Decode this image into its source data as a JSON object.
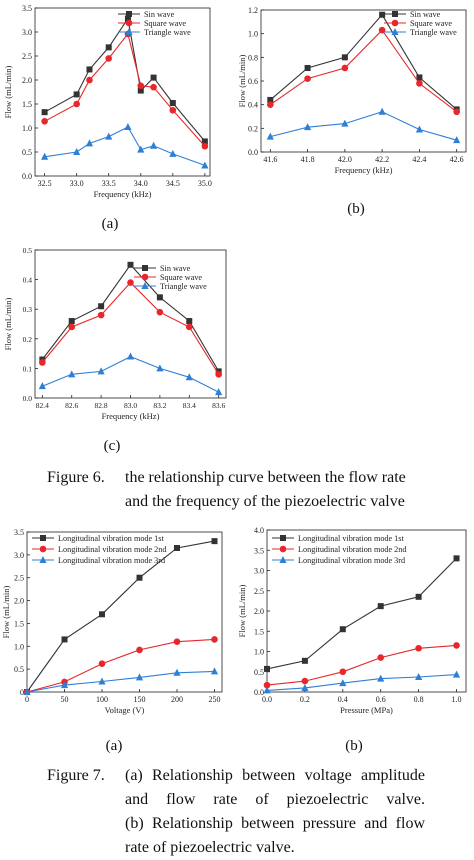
{
  "colors": {
    "sin": "#333333",
    "square": "#e8272a",
    "triangle": "#2f7fd6",
    "axis": "#222222"
  },
  "figure6": {
    "sublabels": [
      "(a)",
      "(b)",
      "(c)"
    ],
    "caption_number": "Figure 6.",
    "caption_lines": [
      "the relationship curve between the flow rate",
      "and the frequency of the piezoelectric valve"
    ]
  },
  "figure7": {
    "sublabels": [
      "(a)",
      "(b)"
    ],
    "caption_number": "Figure 7.",
    "caption_lines": [
      "(a) Relationship between voltage amplitude",
      "and flow rate of piezoelectric valve.",
      "(b) Relationship between pressure and flow",
      "rate of piezoelectric valve."
    ]
  },
  "chart_data": [
    {
      "id": "fig6a",
      "type": "line",
      "xlabel": "Frequency (kHz)",
      "ylabel": "Flow (mL/min)",
      "xlim": [
        32.35,
        35.08
      ],
      "ylim": [
        0,
        3.5
      ],
      "xticks": [
        32.5,
        33.0,
        33.5,
        34.0,
        34.5,
        35.0
      ],
      "xticklabels": [
        "32.5",
        "33.0",
        "33.5",
        "34.0",
        "34.5",
        "35.0"
      ],
      "yticks": [
        0,
        0.5,
        1.0,
        1.5,
        2.0,
        2.5,
        3.0,
        3.5
      ],
      "yticklabels": [
        "0.0",
        "0.5",
        "1.0",
        "1.5",
        "2.0",
        "2.5",
        "3.0",
        "3.5"
      ],
      "legend_position": "top-right",
      "series": [
        {
          "name": "Sin wave",
          "marker": "square",
          "color": "#333333",
          "x": [
            32.5,
            33.0,
            33.2,
            33.5,
            33.8,
            34.0,
            34.2,
            34.5,
            35.0
          ],
          "y": [
            1.33,
            1.7,
            2.22,
            2.68,
            3.28,
            1.78,
            2.05,
            1.52,
            0.72
          ]
        },
        {
          "name": "Square wave",
          "marker": "circle",
          "color": "#e8272a",
          "x": [
            32.5,
            33.0,
            33.2,
            33.5,
            33.8,
            34.0,
            34.2,
            34.5,
            35.0
          ],
          "y": [
            1.14,
            1.5,
            2.0,
            2.45,
            2.96,
            1.88,
            1.85,
            1.37,
            0.62
          ]
        },
        {
          "name": "Triangle wave",
          "marker": "triangle",
          "color": "#2f7fd6",
          "x": [
            32.5,
            33.0,
            33.2,
            33.5,
            33.8,
            34.0,
            34.2,
            34.5,
            35.0
          ],
          "y": [
            0.4,
            0.5,
            0.68,
            0.82,
            1.02,
            0.55,
            0.63,
            0.46,
            0.22
          ]
        }
      ]
    },
    {
      "id": "fig6b",
      "type": "line",
      "xlabel": "Frequency (kHz)",
      "ylabel": "Flow (mL/min)",
      "xlim": [
        41.55,
        42.65
      ],
      "ylim": [
        0,
        1.2
      ],
      "xticks": [
        41.6,
        41.8,
        42.0,
        42.2,
        42.4,
        42.6
      ],
      "xticklabels": [
        "41.6",
        "41.8",
        "42.0",
        "42.2",
        "42.4",
        "42.6"
      ],
      "yticks": [
        0,
        0.2,
        0.4,
        0.6,
        0.8,
        1.0,
        1.2
      ],
      "yticklabels": [
        "0.0",
        "0.2",
        "0.4",
        "0.6",
        "0.8",
        "1.0",
        "1.2"
      ],
      "legend_position": "top-right",
      "series": [
        {
          "name": "Sin wave",
          "marker": "square",
          "color": "#333333",
          "x": [
            41.6,
            41.8,
            42.0,
            42.2,
            42.4,
            42.6
          ],
          "y": [
            0.44,
            0.71,
            0.8,
            1.16,
            0.63,
            0.36
          ]
        },
        {
          "name": "Square wave",
          "marker": "circle",
          "color": "#e8272a",
          "x": [
            41.6,
            41.8,
            42.0,
            42.2,
            42.4,
            42.6
          ],
          "y": [
            0.4,
            0.62,
            0.71,
            1.03,
            0.58,
            0.34
          ]
        },
        {
          "name": "Triangle wave",
          "marker": "triangle",
          "color": "#2f7fd6",
          "x": [
            41.6,
            41.8,
            42.0,
            42.2,
            42.4,
            42.6
          ],
          "y": [
            0.13,
            0.21,
            0.24,
            0.34,
            0.19,
            0.1
          ]
        }
      ]
    },
    {
      "id": "fig6c",
      "type": "line",
      "xlabel": "Frequency (kHz)",
      "ylabel": "Flow (mL/min)",
      "xlim": [
        82.35,
        83.65
      ],
      "ylim": [
        0,
        0.5
      ],
      "xticks": [
        82.4,
        82.6,
        82.8,
        83.0,
        83.2,
        83.4,
        83.6
      ],
      "xticklabels": [
        "82.4",
        "82.6",
        "82.8",
        "83.0",
        "83.2",
        "83.4",
        "83.6"
      ],
      "yticks": [
        0,
        0.1,
        0.2,
        0.3,
        0.4,
        0.5
      ],
      "yticklabels": [
        "0.0",
        "0.1",
        "0.2",
        "0.3",
        "0.4",
        "0.5"
      ],
      "legend_position": "top-right",
      "series": [
        {
          "name": "Sin wave",
          "marker": "square",
          "color": "#333333",
          "x": [
            82.4,
            82.6,
            82.8,
            83.0,
            83.2,
            83.4,
            83.6
          ],
          "y": [
            0.13,
            0.26,
            0.31,
            0.45,
            0.34,
            0.26,
            0.09
          ]
        },
        {
          "name": "Square wave",
          "marker": "circle",
          "color": "#e8272a",
          "x": [
            82.4,
            82.6,
            82.8,
            83.0,
            83.2,
            83.4,
            83.6
          ],
          "y": [
            0.12,
            0.24,
            0.28,
            0.39,
            0.29,
            0.24,
            0.08
          ]
        },
        {
          "name": "Triangle wave",
          "marker": "triangle",
          "color": "#2f7fd6",
          "x": [
            82.4,
            82.6,
            82.8,
            83.0,
            83.2,
            83.4,
            83.6
          ],
          "y": [
            0.04,
            0.08,
            0.09,
            0.14,
            0.1,
            0.07,
            0.02
          ]
        }
      ]
    },
    {
      "id": "fig7a",
      "type": "line",
      "xlabel": "Voltage (V)",
      "ylabel": "Flow (mL/min)",
      "xlim": [
        0,
        260
      ],
      "ylim": [
        0,
        3.5
      ],
      "xticks": [
        0,
        50,
        100,
        150,
        200,
        250
      ],
      "xticklabels": [
        "0",
        "50",
        "100",
        "150",
        "200",
        "250"
      ],
      "yticks": [
        0,
        0.5,
        1.0,
        1.5,
        2.0,
        2.5,
        3.0,
        3.5
      ],
      "yticklabels": [
        "0",
        "0.5",
        "1.0",
        "1.5",
        "2.0",
        "2.5",
        "3.0",
        "3.5"
      ],
      "legend_position": "top-left",
      "series": [
        {
          "name": "Longitudinal vibration mode 1st",
          "marker": "square",
          "color": "#333333",
          "x": [
            0,
            50,
            100,
            150,
            200,
            250
          ],
          "y": [
            0,
            1.15,
            1.7,
            2.5,
            3.15,
            3.3
          ]
        },
        {
          "name": "Longitudinal vibration mode 2nd",
          "marker": "circle",
          "color": "#e8272a",
          "x": [
            0,
            50,
            100,
            150,
            200,
            250
          ],
          "y": [
            0,
            0.22,
            0.62,
            0.92,
            1.1,
            1.15
          ]
        },
        {
          "name": "Longitudinal vibration mode 3rd",
          "marker": "triangle",
          "color": "#2f7fd6",
          "x": [
            0,
            50,
            100,
            150,
            200,
            250
          ],
          "y": [
            0,
            0.15,
            0.23,
            0.32,
            0.42,
            0.45
          ]
        }
      ]
    },
    {
      "id": "fig7b",
      "type": "line",
      "xlabel": "Pressure (MPa)",
      "ylabel": "Flow (mL/min)",
      "xlim": [
        0,
        1.05
      ],
      "ylim": [
        0,
        4.0
      ],
      "xticks": [
        0,
        0.2,
        0.4,
        0.6,
        0.8,
        1.0
      ],
      "xticklabels": [
        "0.0",
        "0.2",
        "0.4",
        "0.6",
        "0.8",
        "1.0"
      ],
      "yticks": [
        0,
        0.5,
        1.0,
        1.5,
        2.0,
        2.5,
        3.0,
        3.5,
        4.0
      ],
      "yticklabels": [
        "0.0",
        "0.5",
        "1.0",
        "1.5",
        "2.0",
        "2.5",
        "3.0",
        "3.5",
        "4.0"
      ],
      "legend_position": "top-left",
      "series": [
        {
          "name": "Longitudinal vibration mode 1st",
          "marker": "square",
          "color": "#333333",
          "x": [
            0,
            0.2,
            0.4,
            0.6,
            0.8,
            1.0
          ],
          "y": [
            0.57,
            0.77,
            1.55,
            2.12,
            2.35,
            3.3
          ]
        },
        {
          "name": "Longitudinal vibration mode 2nd",
          "marker": "circle",
          "color": "#e8272a",
          "x": [
            0,
            0.2,
            0.4,
            0.6,
            0.8,
            1.0
          ],
          "y": [
            0.17,
            0.27,
            0.5,
            0.85,
            1.08,
            1.15
          ]
        },
        {
          "name": "Longitudinal vibration mode 3rd",
          "marker": "triangle",
          "color": "#2f7fd6",
          "x": [
            0,
            0.2,
            0.4,
            0.6,
            0.8,
            1.0
          ],
          "y": [
            0.04,
            0.1,
            0.22,
            0.33,
            0.37,
            0.43
          ]
        }
      ]
    }
  ]
}
